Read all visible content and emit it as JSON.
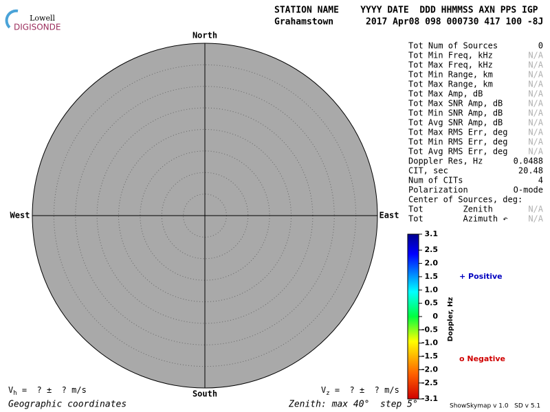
{
  "logo": {
    "top": "Lowell",
    "bottom": "DIGISONDE"
  },
  "header": {
    "labels": "STATION NAME    YYYY DATE  DDD HHMMSS AXN PPS IGP",
    "values": "Grahamstown      2017 Apr08 098 000730 417 100 -8J"
  },
  "plot": {
    "north": "North",
    "south": "South",
    "west": "West",
    "east": "East"
  },
  "stats": {
    "rows": [
      [
        "Tot Num of Sources",
        "0"
      ],
      [
        "Tot Min Freq, kHz",
        "N/A"
      ],
      [
        "Tot Max Freq, kHz",
        "N/A"
      ],
      [
        "Tot Min Range, km",
        "N/A"
      ],
      [
        "Tot Max Range, km",
        "N/A"
      ],
      [
        "Tot Max Amp, dB",
        "N/A"
      ],
      [
        "Tot Max SNR Amp, dB",
        "N/A"
      ],
      [
        "Tot Min SNR Amp, dB",
        "N/A"
      ],
      [
        "Tot Avg SNR Amp, dB",
        "N/A"
      ],
      [
        "Tot Max RMS Err, deg",
        "N/A"
      ],
      [
        "Tot Min RMS Err, deg",
        "N/A"
      ],
      [
        "Tot Avg RMS Err, deg",
        "N/A"
      ],
      [
        "Doppler Res, Hz",
        "0.0488"
      ],
      [
        "CIT, sec",
        "20.48"
      ],
      [
        "Num of CITs",
        "4"
      ],
      [
        "Polarization",
        "O-mode"
      ],
      [
        "Center of Sources, deg:",
        null
      ],
      [
        "Tot        Zenith",
        "N/A"
      ],
      [
        "Tot        Azimuth ↶",
        "N/A"
      ]
    ]
  },
  "colorbar": {
    "label": "Doppler, Hz",
    "lim": [
      -3.1,
      3.1
    ],
    "ticks": [
      3.1,
      2.5,
      {
        "value": 2,
        "label": "2.0"
      },
      1.5,
      {
        "value": 1,
        "label": "1.0"
      },
      0.5,
      0,
      -0.5,
      {
        "value": -1,
        "label": "-1.0"
      },
      -1.5,
      {
        "value": -2,
        "label": "-2.0"
      },
      -2.5,
      -3.1
    ]
  },
  "legend": {
    "positive": "+ Positive",
    "negative": "o Negative"
  },
  "footer": {
    "vh": {
      "symbol": "V",
      "subscript": "h",
      "text": " =  ? ±  ? m/s"
    },
    "vz": {
      "symbol": "V",
      "subscript": "z",
      "text": " =  ? ±  ? m/s"
    },
    "coords": "Geographic coordinates",
    "zenith": "Zenith: max 40°  step 5°",
    "version": "ShowSkymap v 1.0   SD v 5.1"
  }
}
